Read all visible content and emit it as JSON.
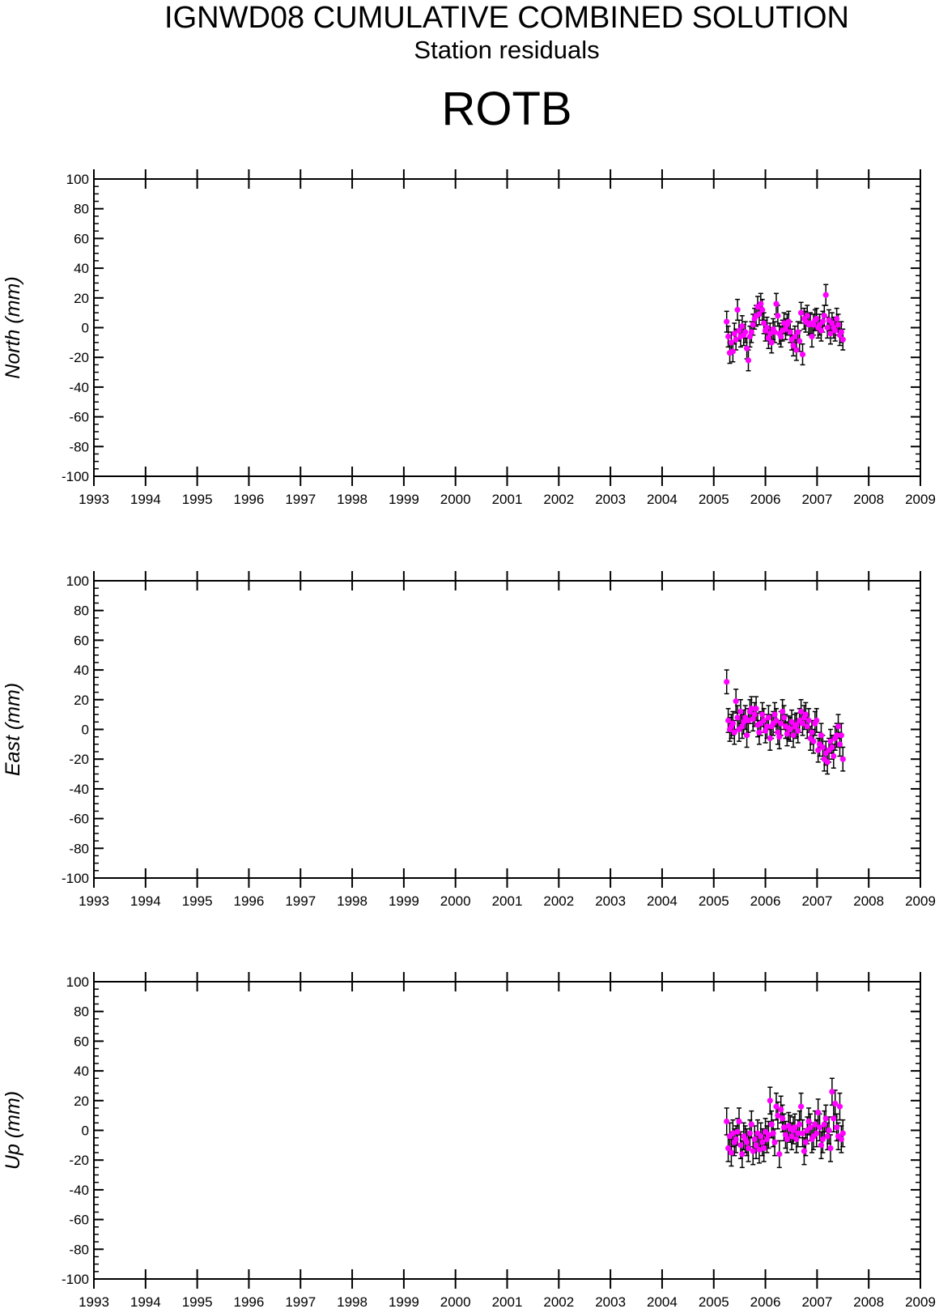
{
  "header": {
    "title": "IGNWD08 CUMULATIVE COMBINED SOLUTION",
    "subtitle": "Station residuals",
    "station": "ROTB"
  },
  "colors": {
    "marker": "#ff00ff",
    "error_bar": "#000000",
    "axis": "#000000"
  },
  "chart_data": [
    {
      "type": "scatter",
      "name": "north",
      "ylabel": "North (mm)",
      "xlim": [
        1993,
        2009
      ],
      "ylim": [
        -100,
        100
      ],
      "xticks": [
        1993,
        1994,
        1995,
        1996,
        1997,
        1998,
        1999,
        2000,
        2001,
        2002,
        2003,
        2004,
        2005,
        2006,
        2007,
        2008,
        2009
      ],
      "yticks": [
        100,
        80,
        60,
        40,
        20,
        0,
        -20,
        -40,
        -60,
        -80,
        -100
      ],
      "grid": false,
      "error_bar_mm": 7,
      "x": [
        2005.25,
        2005.28,
        2005.31,
        2005.34,
        2005.37,
        2005.4,
        2005.43,
        2005.46,
        2005.49,
        2005.52,
        2005.55,
        2005.58,
        2005.61,
        2005.64,
        2005.67,
        2005.7,
        2005.73,
        2005.76,
        2005.79,
        2005.82,
        2005.85,
        2005.88,
        2005.91,
        2005.94,
        2005.97,
        2006.0,
        2006.03,
        2006.06,
        2006.09,
        2006.12,
        2006.15,
        2006.18,
        2006.21,
        2006.24,
        2006.27,
        2006.3,
        2006.33,
        2006.36,
        2006.39,
        2006.42,
        2006.45,
        2006.48,
        2006.51,
        2006.54,
        2006.57,
        2006.6,
        2006.63,
        2006.66,
        2006.69,
        2006.72,
        2006.75,
        2006.78,
        2006.81,
        2006.84,
        2006.87,
        2006.9,
        2006.93,
        2006.96,
        2006.99,
        2007.02,
        2007.05,
        2007.08,
        2007.11,
        2007.14,
        2007.17,
        2007.2,
        2007.23,
        2007.26,
        2007.29,
        2007.32,
        2007.35,
        2007.38,
        2007.41,
        2007.44,
        2007.47,
        2007.5
      ],
      "y": [
        4,
        -6,
        -17,
        -10,
        -16,
        -4,
        -8,
        12,
        -2,
        -6,
        1,
        -5,
        -3,
        -14,
        -22,
        -6,
        -3,
        2,
        6,
        8,
        14,
        9,
        16,
        12,
        3,
        -2,
        0,
        -7,
        -4,
        -10,
        -1,
        -3,
        16,
        8,
        -4,
        -6,
        -2,
        3,
        -1,
        2,
        4,
        -3,
        -8,
        -12,
        -6,
        -15,
        -3,
        -9,
        10,
        -18,
        6,
        4,
        8,
        2,
        3,
        -6,
        2,
        5,
        6,
        0,
        2,
        -2,
        4,
        8,
        22,
        0,
        5,
        -4,
        3,
        0,
        -2,
        6,
        2,
        -5,
        -3,
        -8
      ]
    },
    {
      "type": "scatter",
      "name": "east",
      "ylabel": "East (mm)",
      "xlim": [
        1993,
        2009
      ],
      "ylim": [
        -100,
        100
      ],
      "xticks": [
        1993,
        1994,
        1995,
        1996,
        1997,
        1998,
        1999,
        2000,
        2001,
        2002,
        2003,
        2004,
        2005,
        2006,
        2007,
        2008,
        2009
      ],
      "yticks": [
        100,
        80,
        60,
        40,
        20,
        0,
        -20,
        -40,
        -60,
        -80,
        -100
      ],
      "grid": false,
      "error_bar_mm": 8,
      "x": [
        2005.25,
        2005.28,
        2005.31,
        2005.34,
        2005.37,
        2005.4,
        2005.43,
        2005.46,
        2005.49,
        2005.52,
        2005.55,
        2005.58,
        2005.61,
        2005.64,
        2005.67,
        2005.7,
        2005.73,
        2005.76,
        2005.79,
        2005.82,
        2005.85,
        2005.88,
        2005.91,
        2005.94,
        2005.97,
        2006.0,
        2006.03,
        2006.06,
        2006.09,
        2006.12,
        2006.15,
        2006.18,
        2006.21,
        2006.24,
        2006.27,
        2006.3,
        2006.33,
        2006.36,
        2006.39,
        2006.42,
        2006.45,
        2006.48,
        2006.51,
        2006.54,
        2006.57,
        2006.6,
        2006.63,
        2006.66,
        2006.69,
        2006.72,
        2006.75,
        2006.78,
        2006.81,
        2006.84,
        2006.87,
        2006.9,
        2006.93,
        2006.96,
        2006.99,
        2007.02,
        2007.05,
        2007.08,
        2007.11,
        2007.14,
        2007.17,
        2007.2,
        2007.23,
        2007.26,
        2007.29,
        2007.32,
        2007.35,
        2007.38,
        2007.41,
        2007.44,
        2007.47,
        2007.5
      ],
      "y": [
        32,
        6,
        0,
        2,
        4,
        -2,
        19,
        8,
        0,
        12,
        2,
        5,
        8,
        -4,
        6,
        12,
        14,
        7,
        10,
        14,
        3,
        -2,
        4,
        10,
        6,
        -1,
        2,
        8,
        -6,
        2,
        4,
        10,
        6,
        -2,
        -5,
        4,
        12,
        8,
        2,
        -3,
        1,
        0,
        5,
        -4,
        2,
        3,
        -1,
        6,
        12,
        4,
        8,
        10,
        2,
        6,
        -6,
        -2,
        -8,
        4,
        6,
        -14,
        -10,
        -4,
        -12,
        -20,
        -16,
        -22,
        -14,
        -8,
        -12,
        -18,
        -6,
        -4,
        2,
        -10,
        -4,
        -20
      ]
    },
    {
      "type": "scatter",
      "name": "up",
      "ylabel": "Up (mm)",
      "xlim": [
        1993,
        2009
      ],
      "ylim": [
        -100,
        100
      ],
      "xticks": [
        1993,
        1994,
        1995,
        1996,
        1997,
        1998,
        1999,
        2000,
        2001,
        2002,
        2003,
        2004,
        2005,
        2006,
        2007,
        2008,
        2009
      ],
      "yticks": [
        100,
        80,
        60,
        40,
        20,
        0,
        -20,
        -40,
        -60,
        -80,
        -100
      ],
      "grid": false,
      "error_bar_mm": 9,
      "x": [
        2005.25,
        2005.28,
        2005.31,
        2005.34,
        2005.37,
        2005.4,
        2005.43,
        2005.46,
        2005.49,
        2005.52,
        2005.55,
        2005.58,
        2005.61,
        2005.64,
        2005.67,
        2005.7,
        2005.73,
        2005.76,
        2005.79,
        2005.82,
        2005.85,
        2005.88,
        2005.91,
        2005.94,
        2005.97,
        2006.0,
        2006.03,
        2006.06,
        2006.09,
        2006.12,
        2006.15,
        2006.18,
        2006.21,
        2006.24,
        2006.27,
        2006.3,
        2006.33,
        2006.36,
        2006.39,
        2006.42,
        2006.45,
        2006.48,
        2006.51,
        2006.54,
        2006.57,
        2006.6,
        2006.63,
        2006.66,
        2006.69,
        2006.72,
        2006.75,
        2006.78,
        2006.81,
        2006.84,
        2006.87,
        2006.9,
        2006.93,
        2006.96,
        2006.99,
        2007.02,
        2007.05,
        2007.08,
        2007.11,
        2007.14,
        2007.17,
        2007.2,
        2007.23,
        2007.26,
        2007.29,
        2007.32,
        2007.35,
        2007.38,
        2007.41,
        2007.44,
        2007.47,
        2007.5
      ],
      "y": [
        6,
        -12,
        -4,
        -15,
        -2,
        -8,
        -6,
        -1,
        6,
        -10,
        -16,
        -4,
        -6,
        -8,
        -12,
        -2,
        4,
        -14,
        -6,
        -10,
        -2,
        -13,
        -4,
        -8,
        -12,
        -1,
        -6,
        -3,
        20,
        4,
        -2,
        -8,
        16,
        10,
        -16,
        14,
        8,
        2,
        -3,
        -6,
        3,
        1,
        -4,
        0,
        2,
        -6,
        -2,
        4,
        16,
        -2,
        -14,
        -8,
        0,
        6,
        2,
        -6,
        -4,
        4,
        -2,
        12,
        2,
        -10,
        -6,
        4,
        8,
        -4,
        0,
        -12,
        26,
        8,
        18,
        2,
        -4,
        16,
        -6,
        -2
      ]
    }
  ]
}
